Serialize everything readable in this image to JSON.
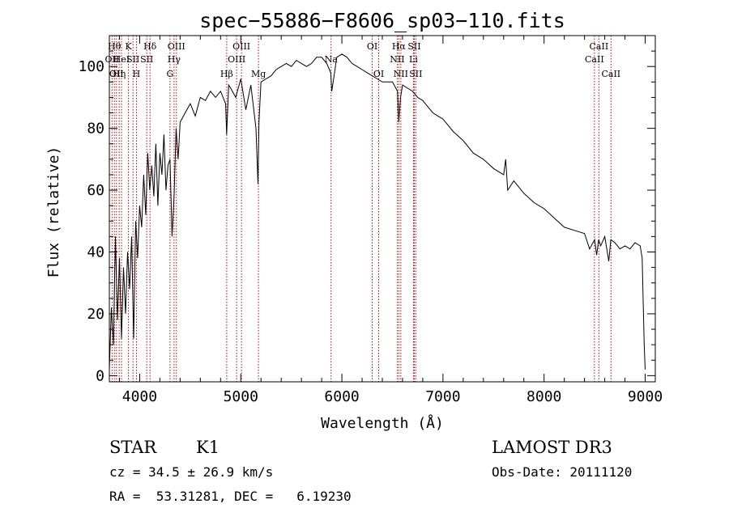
{
  "chart_data": {
    "type": "line",
    "title": "spec−55886−F8606_sp03−110.fits",
    "xlabel": "Wavelength (Å)",
    "ylabel": "Flux (relative)",
    "xlim": [
      3700,
      9100
    ],
    "ylim": [
      -2,
      110
    ],
    "xticks": [
      {
        "value": 4000,
        "label": "4000"
      },
      {
        "value": 5000,
        "label": "5000"
      },
      {
        "value": 6000,
        "label": "6000"
      },
      {
        "value": 7000,
        "label": "7000"
      },
      {
        "value": 8000,
        "label": "8000"
      },
      {
        "value": 9000,
        "label": "9000"
      }
    ],
    "yticks": [
      {
        "value": 0,
        "label": "0"
      },
      {
        "value": 20,
        "label": "20"
      },
      {
        "value": 40,
        "label": "40"
      },
      {
        "value": 60,
        "label": "60"
      },
      {
        "value": 80,
        "label": "80"
      },
      {
        "value": 100,
        "label": "100"
      }
    ],
    "grid": false,
    "line_color": "#000000",
    "marker_color": "#cc0000",
    "series": [
      {
        "x": [
          3700,
          3720,
          3740,
          3760,
          3780,
          3800,
          3820,
          3840,
          3860,
          3880,
          3900,
          3920,
          3940,
          3960,
          3980,
          4000,
          4020,
          4040,
          4060,
          4080,
          4100,
          4120,
          4140,
          4160,
          4180,
          4200,
          4220,
          4240,
          4260,
          4280,
          4300,
          4320,
          4340,
          4360,
          4380,
          4400,
          4450,
          4500,
          4550,
          4600,
          4650,
          4700,
          4750,
          4800,
          4850,
          4860,
          4880,
          4900,
          4950,
          5000,
          5050,
          5100,
          5150,
          5170,
          5180,
          5200,
          5250,
          5300,
          5350,
          5400,
          5450,
          5500,
          5550,
          5600,
          5650,
          5700,
          5750,
          5800,
          5850,
          5890,
          5900,
          5950,
          6000,
          6050,
          6100,
          6150,
          6200,
          6250,
          6300,
          6350,
          6400,
          6450,
          6500,
          6550,
          6563,
          6580,
          6600,
          6650,
          6700,
          6750,
          6800,
          6850,
          6900,
          6950,
          7000,
          7100,
          7200,
          7300,
          7400,
          7500,
          7600,
          7620,
          7640,
          7700,
          7800,
          7900,
          8000,
          8100,
          8200,
          8300,
          8400,
          8450,
          8500,
          8520,
          8540,
          8560,
          8600,
          8640,
          8660,
          8700,
          8750,
          8800,
          8850,
          8900,
          8950,
          8970,
          8990,
          9000
        ],
        "y": [
          2,
          22,
          10,
          45,
          18,
          38,
          12,
          35,
          20,
          40,
          28,
          45,
          12,
          50,
          38,
          55,
          48,
          65,
          52,
          72,
          60,
          68,
          58,
          75,
          55,
          72,
          65,
          78,
          60,
          68,
          70,
          45,
          58,
          80,
          70,
          82,
          85,
          88,
          84,
          90,
          89,
          92,
          90,
          92,
          88,
          78,
          94,
          93,
          90,
          96,
          86,
          94,
          80,
          62,
          82,
          95,
          96,
          97,
          99,
          100,
          101,
          100,
          102,
          101,
          100,
          101,
          103,
          103,
          101,
          98,
          92,
          103,
          104,
          103,
          101,
          100,
          99,
          98,
          97,
          96,
          95,
          95,
          95,
          92,
          82,
          90,
          94,
          93,
          92,
          90,
          89,
          87,
          85,
          84,
          83,
          79,
          76,
          72,
          70,
          67,
          65,
          70,
          60,
          63,
          59,
          56,
          54,
          51,
          48,
          47,
          46,
          41,
          44,
          39,
          44,
          42,
          45,
          37,
          44,
          43,
          41,
          42,
          41,
          43,
          42,
          38,
          10,
          2
        ]
      }
    ],
    "line_markers": [
      {
        "x": 3727,
        "label": "OII",
        "row": 2
      },
      {
        "x": 3750,
        "label": "Hθ",
        "row": 1
      },
      {
        "x": 3770,
        "label": "OII",
        "row": 3
      },
      {
        "x": 3797,
        "label": "Hη",
        "row": 3
      },
      {
        "x": 3820,
        "label": "HeI",
        "row": 2
      },
      {
        "x": 3889,
        "label": "K",
        "row": 1
      },
      {
        "x": 3934,
        "label": "SII",
        "row": 2
      },
      {
        "x": 3968,
        "label": "H",
        "row": 3
      },
      {
        "x": 4070,
        "label": "SII",
        "row": 2
      },
      {
        "x": 4102,
        "label": "Hδ",
        "row": 1
      },
      {
        "x": 4300,
        "label": "G",
        "row": 3
      },
      {
        "x": 4340,
        "label": "Hγ",
        "row": 2
      },
      {
        "x": 4363,
        "label": "OIII",
        "row": 1
      },
      {
        "x": 4861,
        "label": "Hβ",
        "row": 3
      },
      {
        "x": 4959,
        "label": "OIII",
        "row": 2
      },
      {
        "x": 5007,
        "label": "OIII",
        "row": 1
      },
      {
        "x": 5175,
        "label": "Mg",
        "row": 3
      },
      {
        "x": 5893,
        "label": "Na",
        "row": 2
      },
      {
        "x": 6300,
        "label": "OI",
        "row": 1
      },
      {
        "x": 6364,
        "label": "OI",
        "row": 3
      },
      {
        "x": 6548,
        "label": "NII",
        "row": 2
      },
      {
        "x": 6563,
        "label": "Hα",
        "row": 1
      },
      {
        "x": 6583,
        "label": "NII",
        "row": 3
      },
      {
        "x": 6708,
        "label": "Li",
        "row": 2
      },
      {
        "x": 6716,
        "label": "SII",
        "row": 1
      },
      {
        "x": 6731,
        "label": "SII",
        "row": 3
      },
      {
        "x": 8498,
        "label": "CaII",
        "row": 2
      },
      {
        "x": 8542,
        "label": "CaII",
        "row": 1
      },
      {
        "x": 8662,
        "label": "CaII",
        "row": 3
      }
    ]
  },
  "info": {
    "class": "STAR",
    "subclass": "K1",
    "survey": "LAMOST DR3",
    "cz": "cz = 34.5 ± 26.9 km/s",
    "obs_date": "Obs-Date: 20111120",
    "radec": "RA =  53.31281, DEC =   6.19230"
  }
}
